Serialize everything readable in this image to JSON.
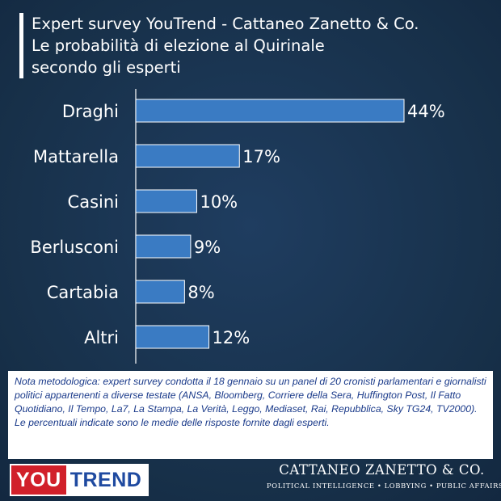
{
  "title_lines": [
    "Expert survey YouTrend - Cattaneo Zanetto & Co.",
    "Le probabilità di elezione al Quirinale",
    "secondo gli esperti"
  ],
  "colors": {
    "background": "#183250",
    "bar": "#3a7bc3",
    "bar_border": "#ffffff",
    "text": "#ffffff",
    "note_text": "#1a3a8a"
  },
  "chart_data": {
    "type": "bar",
    "orientation": "horizontal",
    "categories": [
      "Draghi",
      "Mattarella",
      "Casini",
      "Berlusconi",
      "Cartabia",
      "Altri"
    ],
    "values": [
      44,
      17,
      10,
      9,
      8,
      12
    ],
    "value_labels": [
      "44%",
      "17%",
      "10%",
      "9%",
      "8%",
      "12%"
    ],
    "unit": "%",
    "xlim": [
      0,
      44
    ],
    "grid": false,
    "legend": "none"
  },
  "note": "Nota metodologica: expert survey condotta il 18 gennaio su un panel di 20 cronisti parlamentari e giornalisti politici appartenenti a diverse testate (ANSA, Bloomberg, Corriere della Sera, Huffington Post, Il Fatto Quotidiano, Il Tempo, La7, La Stampa, La Verità, Leggo, Mediaset, Rai, Repubblica, Sky TG24, TV2000). Le percentuali indicate sono le medie delle risposte fornite dagli esperti.",
  "footer": {
    "logo_left": {
      "part1": "YOU",
      "part2": "TREND"
    },
    "logo_right": {
      "name": "CATTANEO ZANETTO & CO.",
      "tagline": "POLITICAL INTELLIGENCE • LOBBYING • PUBLIC AFFAIRS"
    }
  }
}
